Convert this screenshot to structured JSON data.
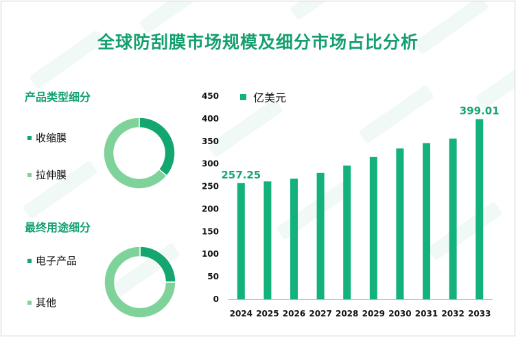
{
  "title": "全球防刮膜市场规模及细分市场占比分析",
  "product_section": {
    "title": "产品类型细分",
    "legend": [
      {
        "label": "收缩膜",
        "color": "#13a66f"
      },
      {
        "label": "拉伸膜",
        "color": "#7fd39a"
      }
    ],
    "shares": [
      0.36,
      0.64
    ]
  },
  "use_section": {
    "title": "最终用途细分",
    "legend": [
      {
        "label": "电子产品",
        "color": "#13a66f"
      },
      {
        "label": "其他",
        "color": "#7fd39a"
      }
    ],
    "shares": [
      0.25,
      0.75
    ]
  },
  "chart_data": {
    "type": "bar",
    "categories": [
      "2024",
      "2025",
      "2026",
      "2027",
      "2028",
      "2029",
      "2030",
      "2031",
      "2032",
      "2033"
    ],
    "series": [
      {
        "name": "亿美元",
        "values": [
          257.25,
          261,
          267,
          280,
          296,
          315,
          334,
          346,
          356,
          399.01
        ]
      }
    ],
    "data_labels": {
      "2024": "257.25",
      "2033": "399.01"
    },
    "ylim": [
      0,
      450
    ],
    "yticks": [
      0,
      50,
      100,
      150,
      200,
      250,
      300,
      350,
      400,
      450
    ],
    "grid": false,
    "legend_position": "top-left",
    "bar_color": "#13b27a",
    "label_color": "#13a66f"
  }
}
